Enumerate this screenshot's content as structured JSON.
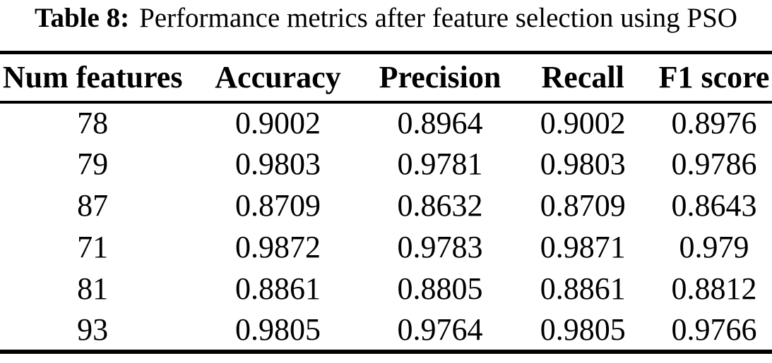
{
  "caption": {
    "label": "Table 8:",
    "text": "Performance metrics after feature selection using PSO"
  },
  "table": {
    "columns": [
      "Num features",
      "Accuracy",
      "Precision",
      "Recall",
      "F1 score"
    ],
    "rows": [
      [
        "78",
        "0.9002",
        "0.8964",
        "0.9002",
        "0.8976"
      ],
      [
        "79",
        "0.9803",
        "0.9781",
        "0.9803",
        "0.9786"
      ],
      [
        "87",
        "0.8709",
        "0.8632",
        "0.8709",
        "0.8643"
      ],
      [
        "71",
        "0.9872",
        "0.9783",
        "0.9871",
        "0.979"
      ],
      [
        "81",
        "0.8861",
        "0.8805",
        "0.8861",
        "0.8812"
      ],
      [
        "93",
        "0.9805",
        "0.9764",
        "0.9805",
        "0.9766"
      ]
    ]
  },
  "chart_data": {
    "type": "table",
    "title": "Table 8: Performance metrics after feature selection using PSO",
    "columns": [
      "Num features",
      "Accuracy",
      "Precision",
      "Recall",
      "F1 score"
    ],
    "rows": [
      [
        78,
        0.9002,
        0.8964,
        0.9002,
        0.8976
      ],
      [
        79,
        0.9803,
        0.9781,
        0.9803,
        0.9786
      ],
      [
        87,
        0.8709,
        0.8632,
        0.8709,
        0.8643
      ],
      [
        71,
        0.9872,
        0.9783,
        0.9871,
        0.979
      ],
      [
        81,
        0.8861,
        0.8805,
        0.8861,
        0.8812
      ],
      [
        93,
        0.9805,
        0.9764,
        0.9805,
        0.9766
      ]
    ]
  },
  "colors": {
    "text": "#000000",
    "background": "#ffffff",
    "rule": "#000000"
  }
}
